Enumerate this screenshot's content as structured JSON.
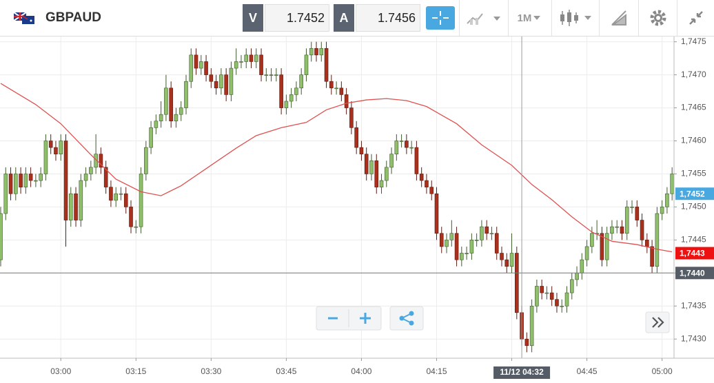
{
  "toolbar": {
    "symbol": "GBPAUD",
    "bid_label": "V",
    "bid": "1.7452",
    "ask_label": "A",
    "ask": "1.7456",
    "timeframe": "1M"
  },
  "chart_data": {
    "type": "candlestick",
    "x": [
      "02:48",
      "02:49",
      "02:50",
      "02:51",
      "02:52",
      "02:53",
      "02:54",
      "02:55",
      "02:56",
      "02:57",
      "02:58",
      "02:59",
      "03:00",
      "03:01",
      "03:02",
      "03:03",
      "03:04",
      "03:05",
      "03:06",
      "03:07",
      "03:08",
      "03:09",
      "03:10",
      "03:11",
      "03:12",
      "03:13",
      "03:14",
      "03:15",
      "03:16",
      "03:17",
      "03:18",
      "03:19",
      "03:20",
      "03:21",
      "03:22",
      "03:23",
      "03:24",
      "03:25",
      "03:26",
      "03:27",
      "03:28",
      "03:29",
      "03:30",
      "03:31",
      "03:32",
      "03:33",
      "03:34",
      "03:35",
      "03:36",
      "03:37",
      "03:38",
      "03:39",
      "03:40",
      "03:41",
      "03:42",
      "03:43",
      "03:44",
      "03:45",
      "03:46",
      "03:47",
      "03:48",
      "03:49",
      "03:50",
      "03:51",
      "03:52",
      "03:53",
      "03:54",
      "03:55",
      "03:56",
      "03:57",
      "03:58",
      "03:59",
      "04:00",
      "04:01",
      "04:02",
      "04:03",
      "04:04",
      "04:05",
      "04:06",
      "04:07",
      "04:08",
      "04:09",
      "04:10",
      "04:11",
      "04:12",
      "04:13",
      "04:14",
      "04:15",
      "04:16",
      "04:17",
      "04:18",
      "04:19",
      "04:20",
      "04:21",
      "04:22",
      "04:23",
      "04:24",
      "04:25",
      "04:26",
      "04:27",
      "04:28",
      "04:29",
      "04:30",
      "04:31",
      "04:32",
      "04:33",
      "04:34",
      "04:35",
      "04:36",
      "04:37",
      "04:38",
      "04:39",
      "04:40",
      "04:41",
      "04:42",
      "04:43",
      "04:44",
      "04:45",
      "04:46",
      "04:47",
      "04:48",
      "04:49",
      "04:50",
      "04:51",
      "04:52",
      "04:53",
      "04:54",
      "04:55",
      "04:56",
      "04:57",
      "04:58",
      "04:59",
      "05:00",
      "05:01",
      "05:02"
    ],
    "open": [
      1.7442,
      1.7449,
      1.7455,
      1.7452,
      1.7455,
      1.7453,
      1.7455,
      1.7454,
      1.7454,
      1.7455,
      1.746,
      1.7459,
      1.7458,
      1.746,
      1.7448,
      1.7452,
      1.7448,
      1.7454,
      1.7455,
      1.7456,
      1.7458,
      1.7456,
      1.7453,
      1.7451,
      1.7452,
      1.7452,
      1.745,
      1.7447,
      1.7447,
      1.7455,
      1.7459,
      1.7462,
      1.7463,
      1.7464,
      1.7468,
      1.7463,
      1.7464,
      1.7465,
      1.7469,
      1.7473,
      1.7471,
      1.7472,
      1.747,
      1.7469,
      1.7468,
      1.747,
      1.7467,
      1.7471,
      1.7472,
      1.7472,
      1.7473,
      1.7472,
      1.7473,
      1.747,
      1.747,
      1.747,
      1.747,
      1.7465,
      1.7466,
      1.7467,
      1.7468,
      1.747,
      1.7473,
      1.7474,
      1.7473,
      1.7474,
      1.7469,
      1.7468,
      1.7468,
      1.7467,
      1.7465,
      1.7462,
      1.7459,
      1.7458,
      1.7455,
      1.7457,
      1.7453,
      1.7454,
      1.7456,
      1.7458,
      1.746,
      1.746,
      1.7459,
      1.7459,
      1.7455,
      1.7454,
      1.7453,
      1.7452,
      1.7446,
      1.7444,
      1.7445,
      1.7446,
      1.7442,
      1.7443,
      1.7443,
      1.7445,
      1.7445,
      1.7447,
      1.7446,
      1.7446,
      1.7443,
      1.7442,
      1.7441,
      1.7443,
      1.7434,
      1.743,
      1.7429,
      1.7435,
      1.7438,
      1.7437,
      1.7437,
      1.7436,
      1.7435,
      1.7435,
      1.7437,
      1.7439,
      1.744,
      1.7442,
      1.7444,
      1.7446,
      1.7446,
      1.7442,
      1.7446,
      1.7447,
      1.7447,
      1.7446,
      1.745,
      1.745,
      1.7448,
      1.7445,
      1.7444,
      1.7441,
      1.7449,
      1.745,
      1.7452
    ],
    "high": [
      1.745,
      1.7456,
      1.7456,
      1.7456,
      1.7456,
      1.7456,
      1.7456,
      1.7455,
      1.7456,
      1.7461,
      1.7461,
      1.746,
      1.7461,
      1.7461,
      1.7453,
      1.7453,
      1.7455,
      1.7456,
      1.7457,
      1.7461,
      1.7459,
      1.7457,
      1.7454,
      1.7453,
      1.7453,
      1.7453,
      1.7451,
      1.7448,
      1.7456,
      1.746,
      1.7463,
      1.7464,
      1.7466,
      1.747,
      1.7469,
      1.7465,
      1.7466,
      1.747,
      1.7474,
      1.7474,
      1.7473,
      1.7473,
      1.7471,
      1.747,
      1.7471,
      1.7471,
      1.7472,
      1.7474,
      1.7473,
      1.7474,
      1.7474,
      1.7474,
      1.7474,
      1.7471,
      1.7471,
      1.7471,
      1.7471,
      1.7467,
      1.7468,
      1.7469,
      1.7471,
      1.7474,
      1.7475,
      1.7475,
      1.7475,
      1.7475,
      1.747,
      1.7469,
      1.7469,
      1.7468,
      1.7466,
      1.7463,
      1.746,
      1.7459,
      1.7458,
      1.7458,
      1.7455,
      1.7457,
      1.7459,
      1.7461,
      1.7461,
      1.7461,
      1.746,
      1.746,
      1.7456,
      1.7455,
      1.7454,
      1.7453,
      1.7447,
      1.7446,
      1.7448,
      1.7447,
      1.7444,
      1.7444,
      1.7446,
      1.7446,
      1.7448,
      1.7448,
      1.7447,
      1.7447,
      1.7444,
      1.7443,
      1.7446,
      1.7444,
      1.7435,
      1.7431,
      1.7436,
      1.7439,
      1.7439,
      1.7438,
      1.7438,
      1.7437,
      1.7436,
      1.7438,
      1.744,
      1.7441,
      1.7443,
      1.7445,
      1.7447,
      1.7448,
      1.7447,
      1.7447,
      1.7448,
      1.7448,
      1.7448,
      1.7451,
      1.7451,
      1.7451,
      1.7449,
      1.7446,
      1.7445,
      1.745,
      1.7451,
      1.7453,
      1.7456
    ],
    "low": [
      1.7441,
      1.7448,
      1.7451,
      1.7451,
      1.7452,
      1.7452,
      1.7453,
      1.7453,
      1.7453,
      1.7454,
      1.7458,
      1.7457,
      1.7457,
      1.7444,
      1.7447,
      1.7447,
      1.7447,
      1.7453,
      1.7454,
      1.7455,
      1.7455,
      1.7452,
      1.745,
      1.745,
      1.7451,
      1.7449,
      1.7446,
      1.7446,
      1.7446,
      1.7454,
      1.7458,
      1.7461,
      1.7462,
      1.7463,
      1.7462,
      1.7462,
      1.7463,
      1.7464,
      1.7468,
      1.747,
      1.747,
      1.7469,
      1.7468,
      1.7467,
      1.7467,
      1.7466,
      1.7466,
      1.747,
      1.7471,
      1.7471,
      1.7471,
      1.7471,
      1.7469,
      1.7469,
      1.7469,
      1.7469,
      1.7464,
      1.7464,
      1.7465,
      1.7466,
      1.7467,
      1.7469,
      1.7472,
      1.7472,
      1.7472,
      1.7468,
      1.7467,
      1.7467,
      1.7466,
      1.7464,
      1.7461,
      1.7458,
      1.7457,
      1.7454,
      1.7454,
      1.7452,
      1.7452,
      1.7453,
      1.7455,
      1.7457,
      1.7459,
      1.7458,
      1.7458,
      1.7454,
      1.7453,
      1.7452,
      1.7451,
      1.7445,
      1.7443,
      1.7443,
      1.7444,
      1.7441,
      1.7441,
      1.7442,
      1.7442,
      1.7444,
      1.7444,
      1.7445,
      1.7445,
      1.7442,
      1.7441,
      1.744,
      1.744,
      1.7433,
      1.7429,
      1.7428,
      1.7428,
      1.7434,
      1.7436,
      1.7436,
      1.7435,
      1.7434,
      1.7434,
      1.7434,
      1.7436,
      1.7438,
      1.7439,
      1.7441,
      1.7443,
      1.7445,
      1.7441,
      1.7441,
      1.7445,
      1.7446,
      1.7445,
      1.7445,
      1.7449,
      1.7447,
      1.7444,
      1.7443,
      1.744,
      1.744,
      1.7448,
      1.7449,
      1.7451
    ],
    "close": [
      1.7449,
      1.7455,
      1.7452,
      1.7455,
      1.7453,
      1.7455,
      1.7454,
      1.7454,
      1.7455,
      1.746,
      1.7459,
      1.7458,
      1.746,
      1.7448,
      1.7452,
      1.7448,
      1.7454,
      1.7455,
      1.7456,
      1.7458,
      1.7456,
      1.7453,
      1.7451,
      1.7452,
      1.7452,
      1.745,
      1.7447,
      1.7447,
      1.7455,
      1.7459,
      1.7462,
      1.7463,
      1.7464,
      1.7468,
      1.7463,
      1.7464,
      1.7465,
      1.7469,
      1.7473,
      1.7471,
      1.7472,
      1.747,
      1.7469,
      1.7468,
      1.747,
      1.7467,
      1.7471,
      1.7472,
      1.7472,
      1.7473,
      1.7472,
      1.7473,
      1.747,
      1.747,
      1.747,
      1.747,
      1.7465,
      1.7466,
      1.7467,
      1.7468,
      1.747,
      1.7473,
      1.7474,
      1.7473,
      1.7474,
      1.7469,
      1.7468,
      1.7468,
      1.7467,
      1.7465,
      1.7462,
      1.7459,
      1.7458,
      1.7455,
      1.7457,
      1.7453,
      1.7454,
      1.7456,
      1.7458,
      1.746,
      1.746,
      1.7459,
      1.7459,
      1.7455,
      1.7454,
      1.7453,
      1.7452,
      1.7446,
      1.7444,
      1.7445,
      1.7446,
      1.7442,
      1.7443,
      1.7443,
      1.7445,
      1.7445,
      1.7447,
      1.7446,
      1.7446,
      1.7443,
      1.7442,
      1.7441,
      1.7443,
      1.7434,
      1.743,
      1.7429,
      1.7435,
      1.7438,
      1.7437,
      1.7437,
      1.7436,
      1.7435,
      1.7435,
      1.7437,
      1.7439,
      1.744,
      1.7442,
      1.7444,
      1.7446,
      1.7446,
      1.7442,
      1.7446,
      1.7447,
      1.7447,
      1.7446,
      1.745,
      1.745,
      1.7448,
      1.7445,
      1.7444,
      1.7441,
      1.7449,
      1.745,
      1.7452,
      1.7455
    ],
    "up_color": "#8fbf6a",
    "down_color": "#a8301c",
    "ma": {
      "color": "#e05050",
      "x": [
        "02:48",
        "02:55",
        "03:00",
        "03:06",
        "03:11",
        "03:16",
        "03:20",
        "03:24",
        "03:29",
        "03:35",
        "03:39",
        "03:44",
        "03:49",
        "03:53",
        "03:57",
        "04:01",
        "04:05",
        "04:09",
        "04:13",
        "04:19",
        "04:24",
        "04:30",
        "04:34",
        "04:38",
        "04:42",
        "04:46",
        "04:50",
        "04:55",
        "04:59",
        "05:02"
      ],
      "values": [
        1.74687,
        1.74655,
        1.74626,
        1.74579,
        1.74542,
        1.74523,
        1.74517,
        1.74532,
        1.74558,
        1.74589,
        1.74608,
        1.7462,
        1.74628,
        1.74647,
        1.74657,
        1.74662,
        1.74664,
        1.74661,
        1.74652,
        1.74626,
        1.74594,
        1.74563,
        1.74534,
        1.74511,
        1.74485,
        1.74462,
        1.74448,
        1.74443,
        1.74436,
        1.74432
      ]
    },
    "ylim": [
      1.74271,
      1.74758
    ],
    "yticks": [
      {
        "value": 1.743,
        "label": "1,7430"
      },
      {
        "value": 1.7435,
        "label": "1,7435"
      },
      {
        "value": 1.744,
        "label": "1,7440"
      },
      {
        "value": 1.7445,
        "label": "1,7445"
      },
      {
        "value": 1.745,
        "label": "1,7450"
      },
      {
        "value": 1.7455,
        "label": "1,7455"
      },
      {
        "value": 1.746,
        "label": "1,7460"
      },
      {
        "value": 1.7465,
        "label": "1,7465"
      },
      {
        "value": 1.747,
        "label": "1,7470"
      },
      {
        "value": 1.7475,
        "label": "1,7475"
      }
    ],
    "xticks": [
      "03:00",
      "03:15",
      "03:30",
      "03:45",
      "04:00",
      "04:15",
      "04:30",
      "04:45",
      "05:00"
    ],
    "grid": true,
    "price_labels": [
      {
        "value": 1.7452,
        "label": "1,7452",
        "color": "#4aa8e0"
      },
      {
        "value": 1.7443,
        "label": "1,7443",
        "color": "#ee1111"
      }
    ],
    "crosshair": {
      "price": {
        "value": 1.744,
        "label": "1,7440"
      },
      "time": "11/12 04:32"
    }
  }
}
